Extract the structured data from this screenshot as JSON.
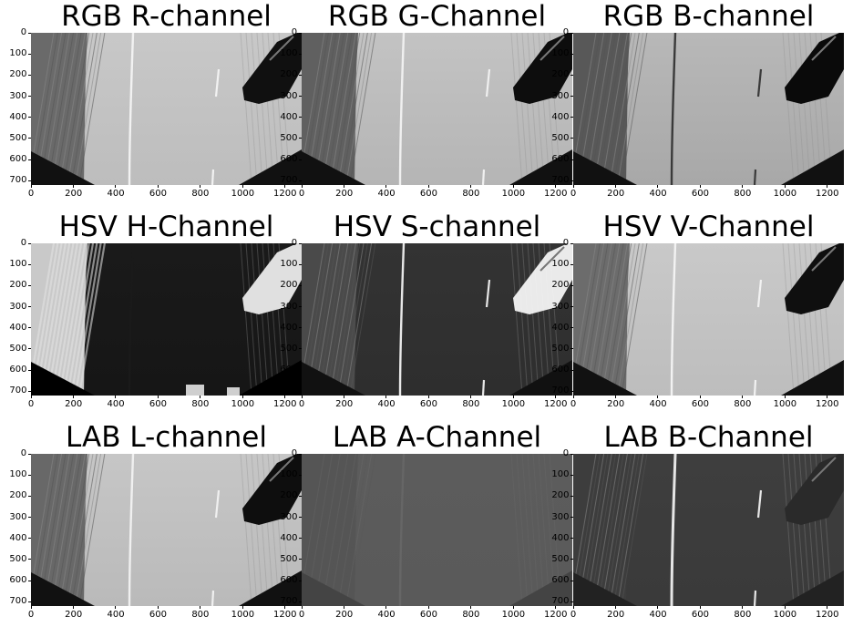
{
  "panels": [
    {
      "title": "RGB R-channel",
      "channel": "r_channel"
    },
    {
      "title": "RGB G-Channel",
      "channel": "g_channel"
    },
    {
      "title": "RGB B-channel",
      "channel": "b_channel"
    },
    {
      "title": "HSV H-Channel",
      "channel": "h_channel"
    },
    {
      "title": "HSV S-channel",
      "channel": "s_channel"
    },
    {
      "title": "HSV V-Channel",
      "channel": "v_channel"
    },
    {
      "title": "LAB L-channel",
      "channel": "l_channel"
    },
    {
      "title": "LAB A-Channel",
      "channel": "a_channel"
    },
    {
      "title": "LAB B-Channel",
      "channel": "lab_b_channel"
    }
  ],
  "x_ticks": [
    "0",
    "200",
    "400",
    "600",
    "800",
    "1000",
    "1200"
  ],
  "y_ticks": [
    "0",
    "100",
    "200",
    "300",
    "400",
    "500",
    "600",
    "700"
  ],
  "image_extent": {
    "x": [
      0,
      1280
    ],
    "y": [
      0,
      720
    ]
  }
}
